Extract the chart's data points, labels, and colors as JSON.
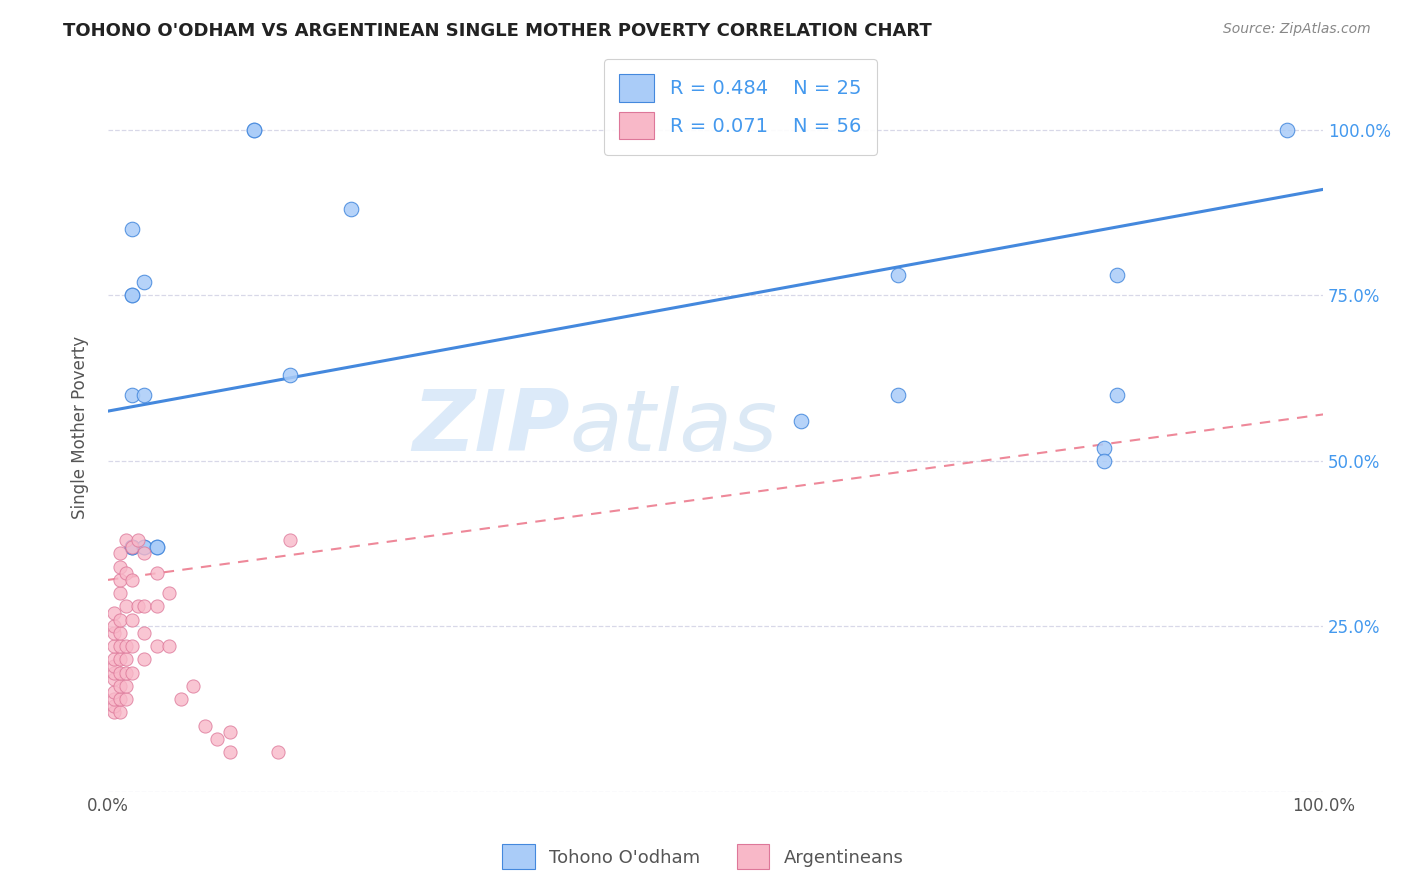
{
  "title": "TOHONO O'ODHAM VS ARGENTINEAN SINGLE MOTHER POVERTY CORRELATION CHART",
  "source": "Source: ZipAtlas.com",
  "ylabel": "Single Mother Poverty",
  "watermark_zip": "ZIP",
  "watermark_atlas": "atlas",
  "legend_r1": "0.484",
  "legend_n1": "25",
  "legend_r2": "0.071",
  "legend_n2": "56",
  "label1": "Tohono O'odham",
  "label2": "Argentineans",
  "color1": "#aaccf8",
  "color2": "#f8b8c8",
  "line1_color": "#4488dd",
  "line2_color": "#ee8899",
  "bg_color": "#ffffff",
  "grid_color": "#d8d8e8",
  "right_ytick_color": "#4499ee",
  "tohono_x": [
    0.12,
    0.12,
    0.2,
    0.02,
    0.03,
    0.02,
    0.02,
    0.65,
    0.65,
    0.83,
    0.83,
    0.97,
    0.15,
    0.57,
    0.82,
    0.82,
    0.02,
    0.02,
    0.02,
    0.02,
    0.03,
    0.03,
    0.03,
    0.04,
    0.04
  ],
  "tohono_y": [
    1.0,
    1.0,
    0.88,
    0.85,
    0.77,
    0.75,
    0.75,
    0.78,
    0.6,
    0.78,
    0.6,
    1.0,
    0.63,
    0.56,
    0.52,
    0.5,
    0.37,
    0.37,
    0.37,
    0.6,
    0.6,
    0.37,
    0.37,
    0.37,
    0.37
  ],
  "arg_x": [
    0.005,
    0.005,
    0.005,
    0.005,
    0.005,
    0.005,
    0.005,
    0.005,
    0.005,
    0.005,
    0.005,
    0.005,
    0.01,
    0.01,
    0.01,
    0.01,
    0.01,
    0.01,
    0.01,
    0.01,
    0.01,
    0.01,
    0.01,
    0.01,
    0.015,
    0.015,
    0.015,
    0.015,
    0.015,
    0.015,
    0.015,
    0.015,
    0.02,
    0.02,
    0.02,
    0.02,
    0.02,
    0.025,
    0.025,
    0.03,
    0.03,
    0.03,
    0.03,
    0.04,
    0.04,
    0.04,
    0.05,
    0.05,
    0.06,
    0.07,
    0.08,
    0.09,
    0.1,
    0.1,
    0.14,
    0.15
  ],
  "arg_y": [
    0.12,
    0.13,
    0.14,
    0.15,
    0.17,
    0.18,
    0.19,
    0.2,
    0.22,
    0.24,
    0.25,
    0.27,
    0.12,
    0.14,
    0.16,
    0.18,
    0.2,
    0.22,
    0.24,
    0.26,
    0.3,
    0.32,
    0.34,
    0.36,
    0.14,
    0.16,
    0.18,
    0.2,
    0.22,
    0.28,
    0.33,
    0.38,
    0.18,
    0.22,
    0.26,
    0.32,
    0.37,
    0.28,
    0.38,
    0.2,
    0.24,
    0.28,
    0.36,
    0.22,
    0.28,
    0.33,
    0.22,
    0.3,
    0.14,
    0.16,
    0.1,
    0.08,
    0.06,
    0.09,
    0.06,
    0.38
  ],
  "line1_x0": 0.0,
  "line1_y0": 0.575,
  "line1_x1": 1.0,
  "line1_y1": 0.91,
  "line2_x0": 0.0,
  "line2_y0": 0.32,
  "line2_x1": 1.0,
  "line2_y1": 0.57,
  "xlim": [
    0.0,
    1.0
  ],
  "ylim": [
    0.0,
    1.1
  ]
}
